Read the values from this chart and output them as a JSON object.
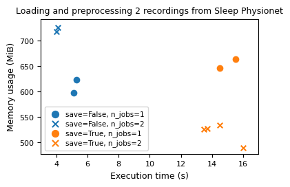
{
  "title": "Loading and preprocessing 2 recordings from Sleep Physionet",
  "xlabel": "Execution time (s)",
  "ylabel": "Memory usage (MiB)",
  "series": [
    {
      "label": "save=False, n_jobs=1",
      "color": "#1f77b4",
      "marker": "o",
      "x": [
        5.1,
        5.3
      ],
      "y": [
        598,
        623
      ]
    },
    {
      "label": "save=False, n_jobs=2",
      "color": "#1f77b4",
      "marker": "x",
      "x": [
        4.0,
        4.1
      ],
      "y": [
        717,
        726
      ]
    },
    {
      "label": "save=True, n_jobs=1",
      "color": "#ff7f0e",
      "marker": "o",
      "x": [
        14.5,
        15.5
      ],
      "y": [
        646,
        663
      ]
    },
    {
      "label": "save=True, n_jobs=2",
      "color": "#ff7f0e",
      "marker": "x",
      "x": [
        13.5,
        13.7,
        14.5,
        16.0
      ],
      "y": [
        526,
        527,
        534,
        490
      ]
    }
  ],
  "xlim": [
    3.0,
    17.0
  ],
  "ylim": [
    478,
    742
  ],
  "yticks": [
    500,
    550,
    600,
    650,
    700
  ],
  "xticks": [
    4,
    6,
    8,
    10,
    12,
    14,
    16
  ],
  "title_fontsize": 9,
  "label_fontsize": 9,
  "tick_fontsize": 8,
  "legend_fontsize": 7.5,
  "marker_size": 30
}
